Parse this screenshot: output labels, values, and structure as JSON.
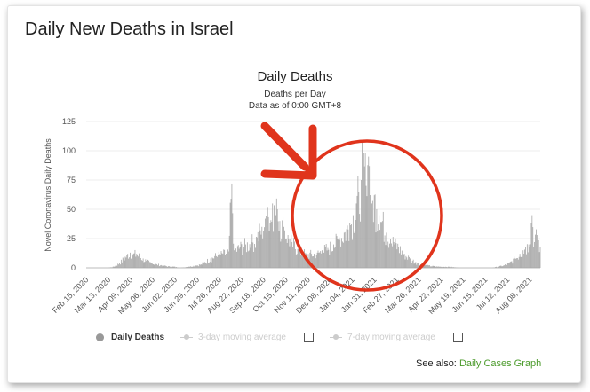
{
  "page_title": "Daily New Deaths in Israel",
  "see_also_label": "See also:",
  "see_also_link": "Daily Cases Graph",
  "colors": {
    "bar": "#a6a6a6",
    "annotation": "#e0341c",
    "link": "#4a9a2a"
  },
  "legend": {
    "daily_deaths": "Daily Deaths",
    "ma3": "3-day moving average",
    "ma7": "7-day moving average"
  },
  "chart_data": {
    "type": "bar",
    "title": "Daily Deaths",
    "subtitle": "Deaths per Day",
    "subtitle2": "Data as of 0:00 GMT+8",
    "ylabel": "Novel Coronavirus Daily Deaths",
    "xlabel": "",
    "ylim": [
      0,
      125
    ],
    "yticks": [
      0,
      25,
      50,
      75,
      100,
      125
    ],
    "x_start": "2020-02-15",
    "x_end": "2021-08-26",
    "tick_labels": [
      "Feb 15, 2020",
      "Mar 13, 2020",
      "Apr 09, 2020",
      "May 06, 2020",
      "Jun 02, 2020",
      "Jun 29, 2020",
      "Jul 26, 2020",
      "Aug 22, 2020",
      "Sep 18, 2020",
      "Oct 15, 2020",
      "Nov 11, 2020",
      "Dec 08, 2020",
      "Jan 04, 2021",
      "Jan 31, 2021",
      "Feb 27, 2021",
      "Mar 26, 2021",
      "Apr 22, 2021",
      "May 19, 2021",
      "Jun 15, 2021",
      "Jul 12, 2021",
      "Aug 08, 2021"
    ],
    "series": [
      {
        "name": "Daily Deaths",
        "points": [
          [
            "2020-02-15",
            0
          ],
          [
            "2020-03-13",
            0
          ],
          [
            "2020-03-20",
            1
          ],
          [
            "2020-03-27",
            4
          ],
          [
            "2020-04-01",
            8
          ],
          [
            "2020-04-05",
            11
          ],
          [
            "2020-04-09",
            13
          ],
          [
            "2020-04-13",
            12
          ],
          [
            "2020-04-17",
            12
          ],
          [
            "2020-04-21",
            10
          ],
          [
            "2020-04-25",
            8
          ],
          [
            "2020-04-29",
            6
          ],
          [
            "2020-05-03",
            5
          ],
          [
            "2020-05-06",
            4
          ],
          [
            "2020-05-12",
            3
          ],
          [
            "2020-05-20",
            2
          ],
          [
            "2020-05-28",
            1
          ],
          [
            "2020-06-02",
            1
          ],
          [
            "2020-06-10",
            0
          ],
          [
            "2020-06-20",
            1
          ],
          [
            "2020-06-29",
            2
          ],
          [
            "2020-07-05",
            3
          ],
          [
            "2020-07-10",
            5
          ],
          [
            "2020-07-17",
            8
          ],
          [
            "2020-07-22",
            10
          ],
          [
            "2020-07-26",
            11
          ],
          [
            "2020-08-01",
            12
          ],
          [
            "2020-08-08",
            14
          ],
          [
            "2020-08-12",
            72
          ],
          [
            "2020-08-15",
            15
          ],
          [
            "2020-08-22",
            18
          ],
          [
            "2020-08-29",
            20
          ],
          [
            "2020-09-05",
            22
          ],
          [
            "2020-09-12",
            26
          ],
          [
            "2020-09-18",
            35
          ],
          [
            "2020-09-22",
            42
          ],
          [
            "2020-09-25",
            52
          ],
          [
            "2020-09-28",
            38
          ],
          [
            "2020-10-01",
            55
          ],
          [
            "2020-10-04",
            45
          ],
          [
            "2020-10-07",
            50
          ],
          [
            "2020-10-10",
            40
          ],
          [
            "2020-10-15",
            35
          ],
          [
            "2020-10-20",
            28
          ],
          [
            "2020-10-25",
            22
          ],
          [
            "2020-11-01",
            16
          ],
          [
            "2020-11-06",
            14
          ],
          [
            "2020-11-11",
            12
          ],
          [
            "2020-11-18",
            12
          ],
          [
            "2020-11-25",
            13
          ],
          [
            "2020-12-01",
            15
          ],
          [
            "2020-12-08",
            17
          ],
          [
            "2020-12-15",
            20
          ],
          [
            "2020-12-22",
            26
          ],
          [
            "2020-12-28",
            30
          ],
          [
            "2021-01-04",
            38
          ],
          [
            "2021-01-08",
            45
          ],
          [
            "2021-01-12",
            55
          ],
          [
            "2021-01-15",
            65
          ],
          [
            "2021-01-18",
            75
          ],
          [
            "2021-01-21",
            98
          ],
          [
            "2021-01-24",
            70
          ],
          [
            "2021-01-27",
            95
          ],
          [
            "2021-01-31",
            55
          ],
          [
            "2021-02-03",
            62
          ],
          [
            "2021-02-06",
            50
          ],
          [
            "2021-02-09",
            45
          ],
          [
            "2021-02-13",
            40
          ],
          [
            "2021-02-18",
            30
          ],
          [
            "2021-02-23",
            25
          ],
          [
            "2021-02-27",
            22
          ],
          [
            "2021-03-05",
            18
          ],
          [
            "2021-03-12",
            12
          ],
          [
            "2021-03-19",
            8
          ],
          [
            "2021-03-26",
            5
          ],
          [
            "2021-04-02",
            3
          ],
          [
            "2021-04-09",
            2
          ],
          [
            "2021-04-22",
            1
          ],
          [
            "2021-05-05",
            1
          ],
          [
            "2021-05-19",
            0
          ],
          [
            "2021-06-01",
            0
          ],
          [
            "2021-06-15",
            0
          ],
          [
            "2021-06-28",
            0
          ],
          [
            "2021-07-05",
            1
          ],
          [
            "2021-07-12",
            2
          ],
          [
            "2021-07-19",
            4
          ],
          [
            "2021-07-26",
            8
          ],
          [
            "2021-08-01",
            12
          ],
          [
            "2021-08-05",
            15
          ],
          [
            "2021-08-08",
            18
          ],
          [
            "2021-08-12",
            20
          ],
          [
            "2021-08-16",
            45
          ],
          [
            "2021-08-19",
            22
          ],
          [
            "2021-08-22",
            28
          ],
          [
            "2021-08-26",
            18
          ]
        ]
      }
    ],
    "grid": true,
    "legend_position": "bottom"
  }
}
